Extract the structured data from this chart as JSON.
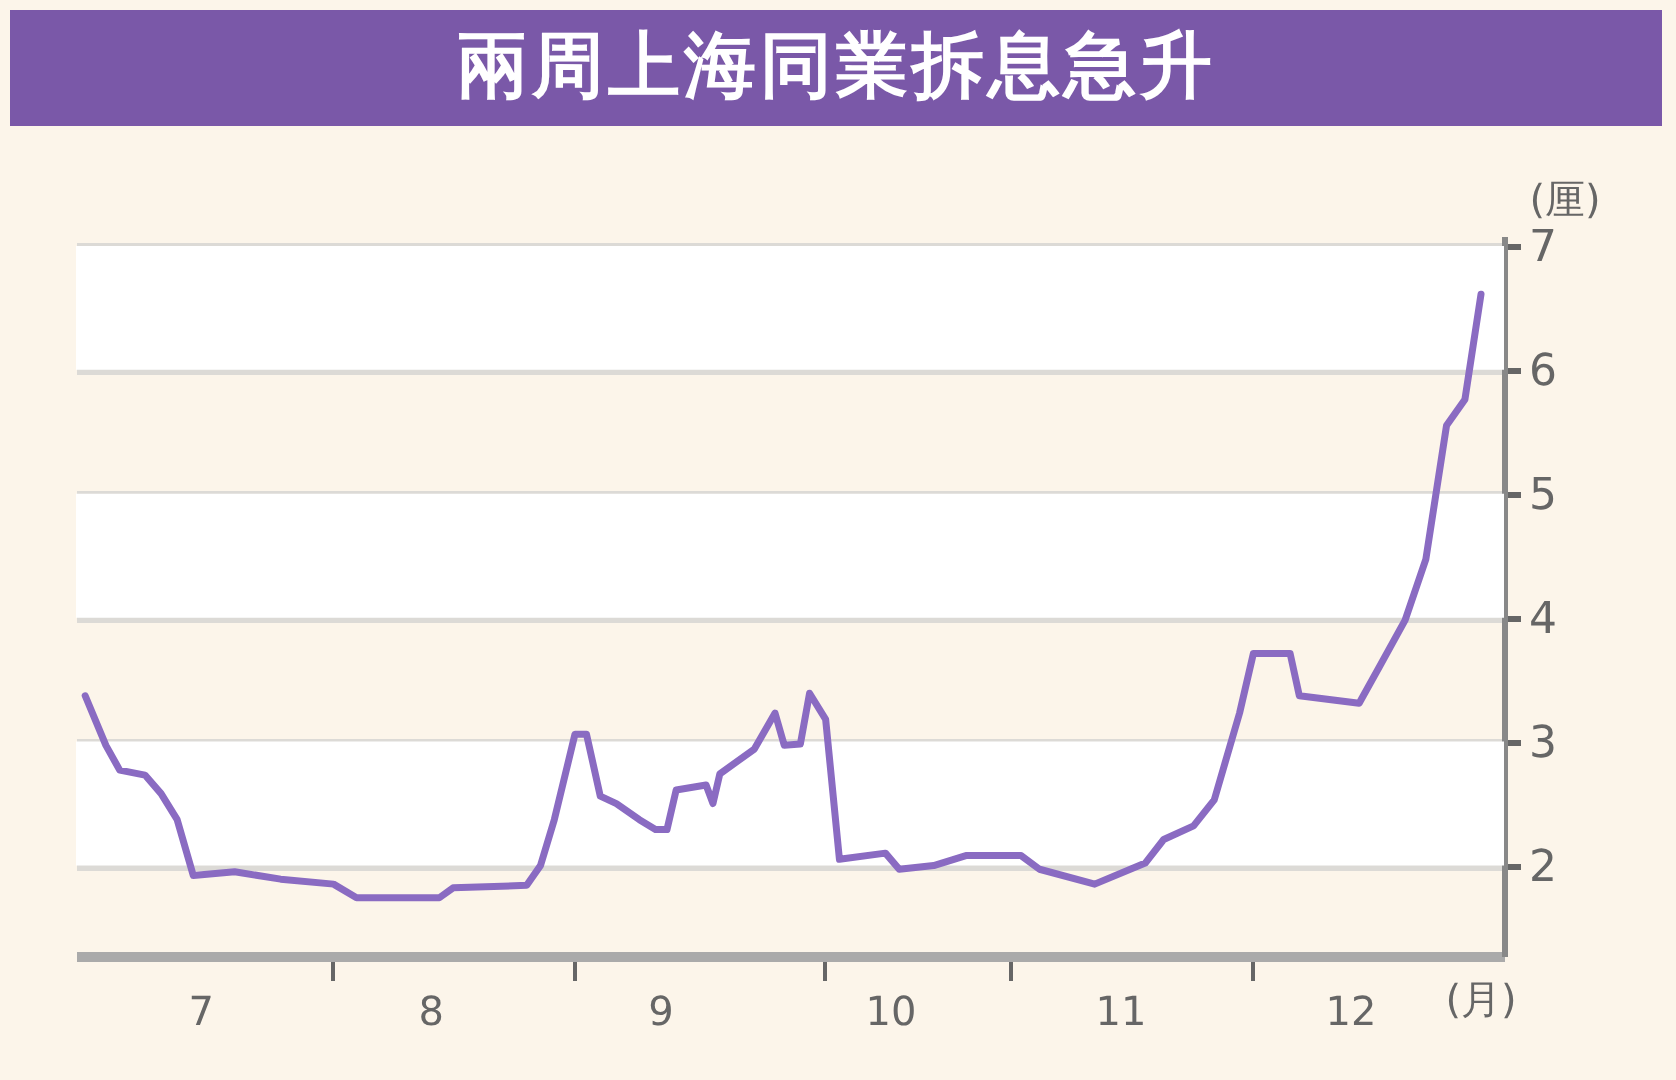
{
  "chart_data": {
    "type": "line",
    "title": "兩周上海同業拆息急升",
    "xlabel": "(月)",
    "ylabel": "(厘)",
    "x": [
      6.5,
      6.59,
      6.65,
      6.76,
      6.83,
      6.9,
      6.97,
      7.15,
      7.35,
      7.58,
      7.68,
      8.04,
      8.1,
      8.42,
      8.48,
      8.54,
      8.63,
      8.68,
      8.74,
      8.81,
      8.91,
      8.98,
      9.03,
      9.07,
      9.2,
      9.23,
      9.26,
      9.41,
      9.5,
      9.54,
      9.61,
      9.65,
      9.72,
      9.78,
      9.98,
      10.04,
      10.19,
      10.33,
      10.57,
      10.65,
      10.89,
      11.11,
      11.19,
      11.32,
      11.41,
      11.52,
      11.58,
      11.74,
      11.78,
      12.04,
      12.13,
      12.24,
      12.33,
      12.42,
      12.5,
      12.57
    ],
    "series": [
      {
        "color": "#8a6bc2",
        "values": [
          3.37,
          2.97,
          2.77,
          2.73,
          2.58,
          2.37,
          1.92,
          1.95,
          1.89,
          1.85,
          1.74,
          1.74,
          1.82,
          1.84,
          2.0,
          2.37,
          3.06,
          3.06,
          2.56,
          2.5,
          2.37,
          2.29,
          2.29,
          2.61,
          2.65,
          2.5,
          2.74,
          2.94,
          3.23,
          2.97,
          2.98,
          3.39,
          3.18,
          2.05,
          2.1,
          1.97,
          2.0,
          2.08,
          2.08,
          1.97,
          1.85,
          2.02,
          2.21,
          2.32,
          2.53,
          3.23,
          3.71,
          3.71,
          3.37,
          3.31,
          3.61,
          3.98,
          4.47,
          5.55,
          5.76,
          6.61
        ]
      }
    ],
    "xlim": [
      6.46,
      12.67
    ],
    "xticks": [
      7,
      {
        "value": 7.57,
        "label": null
      },
      8,
      {
        "value": 8.63,
        "label": null
      },
      9,
      {
        "value": 9.71,
        "label": null
      },
      10,
      {
        "value": 10.52,
        "label": null
      },
      11,
      {
        "value": 11.57,
        "label": null
      },
      12
    ],
    "ylim": [
      1.27,
      7.08
    ],
    "yticks": [
      2,
      3,
      4,
      5,
      6,
      7
    ],
    "bands": [
      {
        "axis": "y",
        "from": 2,
        "to": 3,
        "color": "#ffffff"
      },
      {
        "axis": "y",
        "from": 4,
        "to": 5,
        "color": "#ffffff"
      },
      {
        "axis": "y",
        "from": 6,
        "to": 7,
        "color": "#ffffff"
      }
    ],
    "grid": "y",
    "line_style": "solid",
    "marker": "none"
  }
}
